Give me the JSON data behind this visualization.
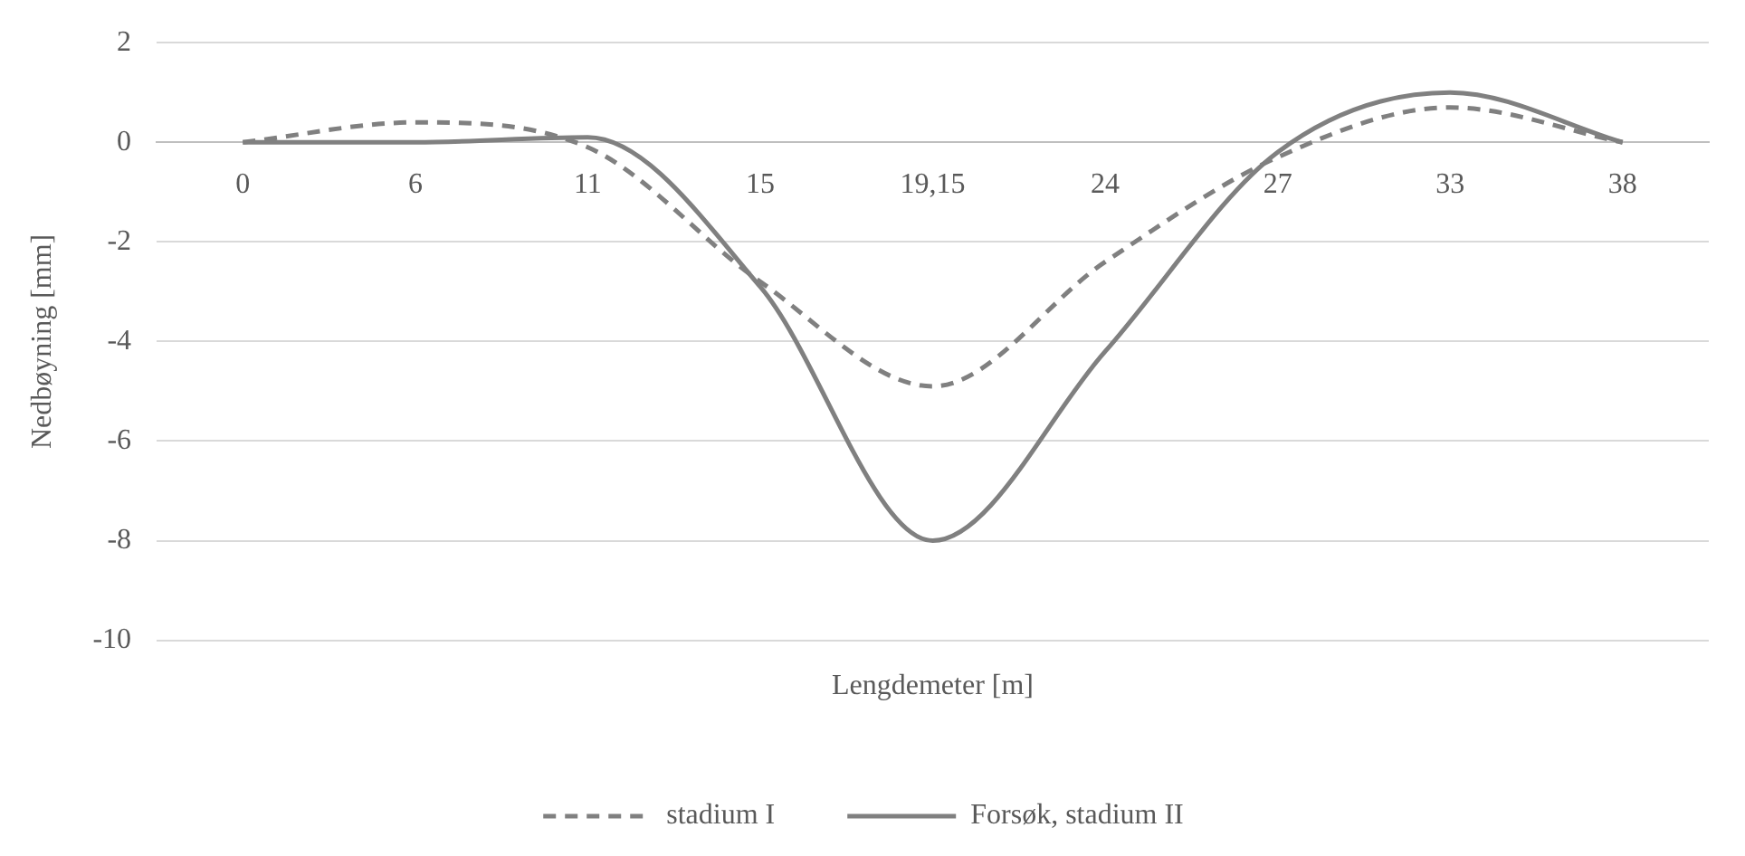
{
  "chart_data": {
    "type": "line",
    "xlabel": "Lengdemeter [m]",
    "ylabel": "Nedbøyning [mm]",
    "categories": [
      "0",
      "6",
      "11",
      "15",
      "19,15",
      "24",
      "27",
      "33",
      "38"
    ],
    "series": [
      {
        "name": "stadium I",
        "color": "#808080",
        "line_style": "dashed",
        "values": [
          0,
          0.4,
          -0.1,
          -2.8,
          -4.9,
          -2.4,
          -0.3,
          0.7,
          0
        ]
      },
      {
        "name": "Forsøk, stadium II",
        "color": "#808080",
        "line_style": "solid",
        "values": [
          0,
          0,
          0.1,
          -2.9,
          -8,
          -4.2,
          -0.2,
          1.0,
          0
        ]
      }
    ],
    "ylim": [
      -10,
      2
    ],
    "yticks": [
      -10,
      -8,
      -6,
      -4,
      -2,
      0,
      2
    ],
    "grid": "y",
    "legend": "bottom",
    "marker": "none"
  }
}
